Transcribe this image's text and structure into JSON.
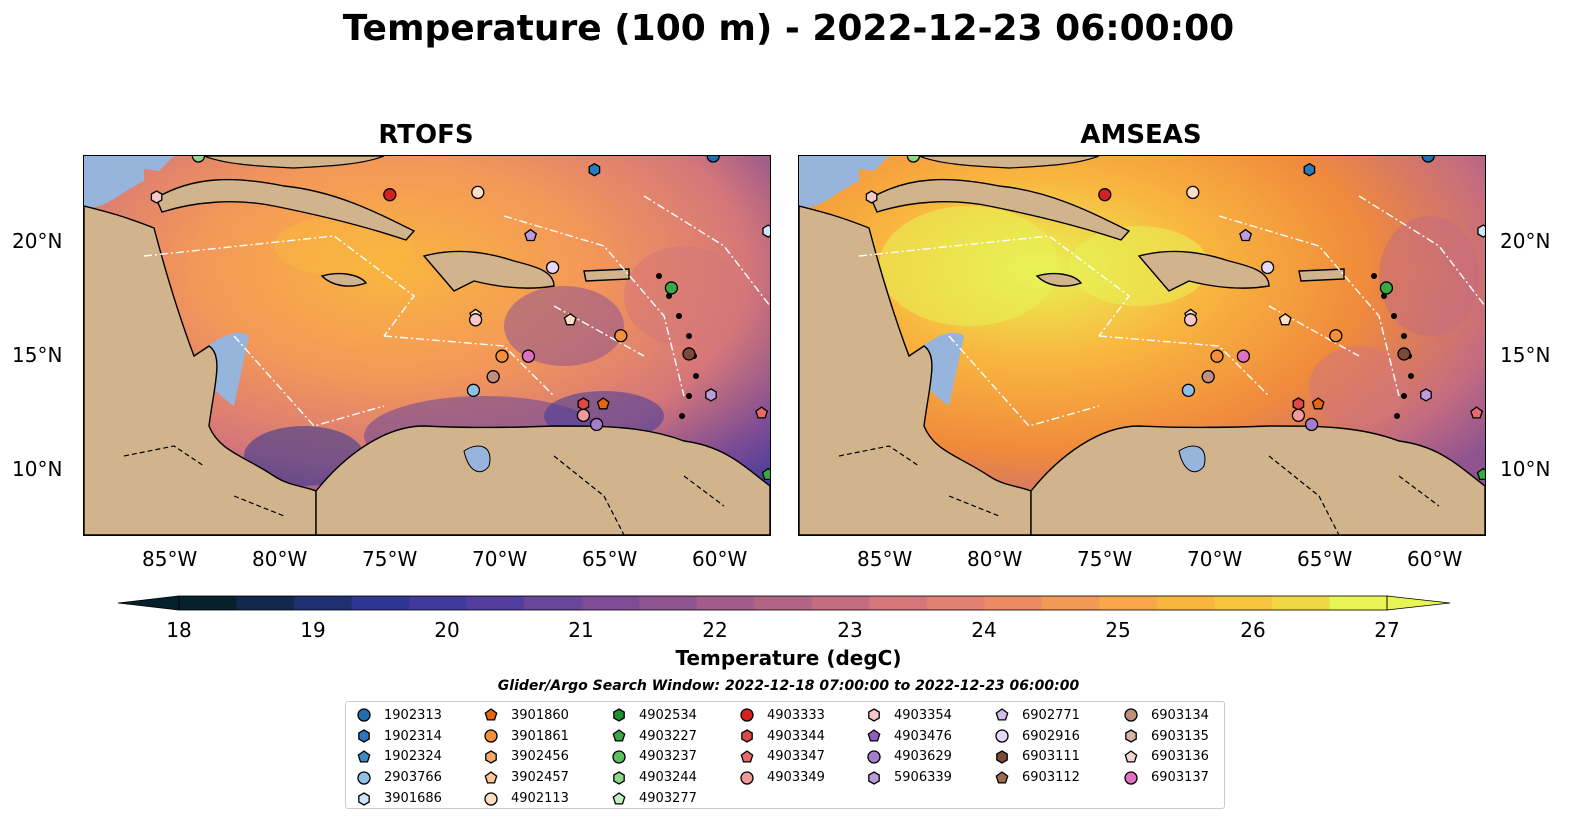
{
  "title": "Temperature (100 m) - 2022-12-23 06:00:00",
  "panels": [
    {
      "name": "RTOFS"
    },
    {
      "name": "AMSEAS"
    }
  ],
  "lon_ticks": [
    "85°W",
    "80°W",
    "75°W",
    "70°W",
    "65°W",
    "60°W"
  ],
  "lat_ticks": [
    "20°N",
    "15°N",
    "10°N"
  ],
  "colorbar": {
    "label": "Temperature (degC)",
    "ticks": [
      "18",
      "19",
      "20",
      "21",
      "22",
      "23",
      "24",
      "25",
      "26",
      "27"
    ],
    "min": 18,
    "max": 27,
    "extend": "both",
    "colors": [
      "#06202e",
      "#12294d",
      "#1f2f70",
      "#2e3592",
      "#403a9d",
      "#543e9d",
      "#6a4599",
      "#7d4c94",
      "#8f548f",
      "#a15c8a",
      "#b26486",
      "#c46c80",
      "#d4767a",
      "#e27f72",
      "#ec8a66",
      "#f49858",
      "#f8a84a",
      "#f9b63f",
      "#f8c63e",
      "#f2d744",
      "#e8f354"
    ]
  },
  "search_window": "Glider/Argo Search Window: 2022-12-18 07:00:00 to 2022-12-23 06:00:00",
  "legend": [
    [
      {
        "id": "1902313",
        "marker": "circle",
        "color": "#1f6fb3"
      },
      {
        "id": "1902314",
        "marker": "hexagon",
        "color": "#2a7bbd"
      },
      {
        "id": "1902324",
        "marker": "pentagon",
        "color": "#3f8ac7"
      },
      {
        "id": "2903766",
        "marker": "circle",
        "color": "#8ec0e8"
      },
      {
        "id": "3901686",
        "marker": "hexagon",
        "color": "#cde5f7"
      }
    ],
    [
      {
        "id": "3901860",
        "marker": "pentagon",
        "color": "#e8650e"
      },
      {
        "id": "3901861",
        "marker": "circle",
        "color": "#f4903c"
      },
      {
        "id": "3902456",
        "marker": "hexagon",
        "color": "#f7a766"
      },
      {
        "id": "3902457",
        "marker": "pentagon",
        "color": "#fbc596"
      },
      {
        "id": "4902113",
        "marker": "circle",
        "color": "#fde0c3"
      }
    ],
    [
      {
        "id": "4902534",
        "marker": "hexagon",
        "color": "#1f8f2e"
      },
      {
        "id": "4903227",
        "marker": "pentagon",
        "color": "#3aa844"
      },
      {
        "id": "4903237",
        "marker": "circle",
        "color": "#5cbe5c"
      },
      {
        "id": "4903244",
        "marker": "hexagon",
        "color": "#8ed68a"
      },
      {
        "id": "4903277",
        "marker": "pentagon",
        "color": "#c4f0c0"
      }
    ],
    [
      {
        "id": "4903333",
        "marker": "circle",
        "color": "#d42020"
      },
      {
        "id": "4903344",
        "marker": "hexagon",
        "color": "#e04848"
      },
      {
        "id": "4903347",
        "marker": "pentagon",
        "color": "#e86a6a"
      },
      {
        "id": "4903349",
        "marker": "circle",
        "color": "#f09a9a"
      }
    ],
    [
      {
        "id": "4903354",
        "marker": "hexagon",
        "color": "#f8c8c8"
      },
      {
        "id": "4903476",
        "marker": "pentagon",
        "color": "#8e5fc0"
      },
      {
        "id": "4903629",
        "marker": "circle",
        "color": "#a47ecd"
      },
      {
        "id": "5906339",
        "marker": "hexagon",
        "color": "#bb9ddb"
      }
    ],
    [
      {
        "id": "6902771",
        "marker": "pentagon",
        "color": "#d2bdea"
      },
      {
        "id": "6902916",
        "marker": "circle",
        "color": "#e6d9f5"
      },
      {
        "id": "6903111",
        "marker": "hexagon",
        "color": "#7b4a3a"
      },
      {
        "id": "6903112",
        "marker": "pentagon",
        "color": "#a06a56"
      }
    ],
    [
      {
        "id": "6903134",
        "marker": "circle",
        "color": "#c08f80"
      },
      {
        "id": "6903135",
        "marker": "hexagon",
        "color": "#d9b2a6"
      },
      {
        "id": "6903136",
        "marker": "pentagon",
        "color": "#f0d6cf"
      },
      {
        "id": "6903137",
        "marker": "circle",
        "color": "#e070c0"
      }
    ]
  ],
  "map_colors": {
    "land": "#d2b48c",
    "shelf": "#96b4dc",
    "deep": "#06202e",
    "warm": "#e8f354"
  }
}
